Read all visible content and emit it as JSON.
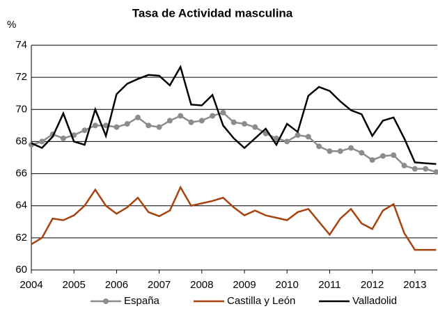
{
  "chart_data": {
    "type": "line",
    "title": "Tasa de Actividad masculina",
    "y_label": "%",
    "categories": [
      "2004",
      null,
      null,
      null,
      "2005",
      null,
      null,
      null,
      "2006",
      null,
      null,
      null,
      "2007",
      null,
      null,
      null,
      "2008",
      null,
      null,
      null,
      "2009",
      null,
      null,
      null,
      "2010",
      null,
      null,
      null,
      "2011",
      null,
      null,
      null,
      "2012",
      null,
      null,
      null,
      "2013",
      null,
      null
    ],
    "ylim": [
      60,
      74
    ],
    "yticks": [
      60,
      62,
      64,
      66,
      68,
      70,
      72,
      74
    ],
    "grid": true,
    "legend": "bottom",
    "series": [
      {
        "name": "España",
        "color": "#8c8c8c",
        "marker": true,
        "values": [
          67.8,
          68.0,
          68.45,
          68.2,
          68.4,
          68.7,
          69.0,
          69.0,
          68.9,
          69.1,
          69.5,
          69.0,
          68.9,
          69.3,
          69.6,
          69.2,
          69.3,
          69.6,
          69.8,
          69.2,
          69.1,
          68.9,
          68.5,
          68.2,
          68.0,
          68.4,
          68.3,
          67.7,
          67.4,
          67.4,
          67.6,
          67.3,
          66.85,
          67.1,
          67.15,
          66.5,
          66.3,
          66.3,
          66.1
        ]
      },
      {
        "name": "Castilla y León",
        "color": "#a8420f",
        "marker": false,
        "values": [
          61.6,
          62.0,
          63.2,
          63.1,
          63.4,
          64.0,
          65.0,
          64.0,
          63.5,
          63.9,
          64.5,
          63.6,
          63.35,
          63.7,
          65.15,
          64.0,
          64.15,
          64.3,
          64.5,
          63.9,
          63.4,
          63.7,
          63.4,
          63.25,
          63.1,
          63.6,
          63.8,
          63.0,
          62.2,
          63.2,
          63.8,
          62.9,
          62.55,
          63.7,
          64.1,
          62.3,
          61.25,
          61.25,
          61.25
        ]
      },
      {
        "name": "Valladolid",
        "color": "#000000",
        "marker": false,
        "values": [
          67.9,
          67.6,
          68.3,
          69.75,
          68.0,
          67.8,
          70.0,
          68.35,
          70.95,
          71.6,
          71.9,
          72.15,
          72.1,
          71.5,
          72.65,
          70.3,
          70.25,
          70.9,
          69.0,
          68.2,
          67.6,
          68.2,
          68.8,
          67.8,
          69.1,
          68.6,
          70.85,
          71.4,
          71.15,
          70.5,
          69.95,
          69.7,
          68.35,
          69.3,
          69.5,
          68.2,
          66.7,
          66.65,
          66.6
        ]
      }
    ]
  }
}
